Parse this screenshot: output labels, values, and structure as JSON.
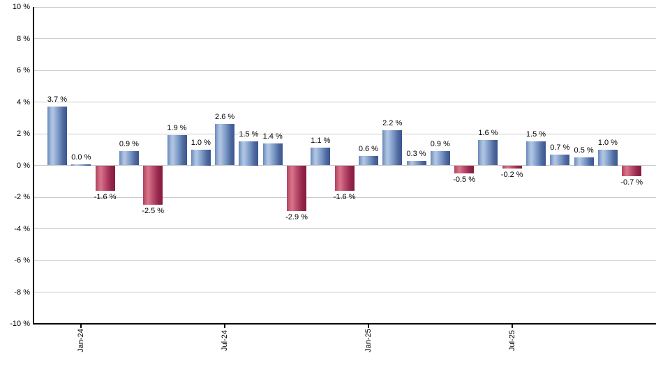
{
  "chart_data": {
    "type": "bar",
    "title": "",
    "xlabel": "",
    "ylabel": "",
    "ylim": [
      -10,
      10
    ],
    "grid": true,
    "legend": false,
    "y_ticks": [
      {
        "value": 10,
        "label": "10 %"
      },
      {
        "value": 8,
        "label": "8 %"
      },
      {
        "value": 6,
        "label": "6 %"
      },
      {
        "value": 4,
        "label": "4 %"
      },
      {
        "value": 2,
        "label": "2 %"
      },
      {
        "value": 0,
        "label": "0 %"
      },
      {
        "value": -2,
        "label": "-2 %"
      },
      {
        "value": -4,
        "label": "-4 %"
      },
      {
        "value": -6,
        "label": "-6 %"
      },
      {
        "value": -8,
        "label": "-8 %"
      },
      {
        "value": -10,
        "label": "-10 %"
      }
    ],
    "values": [
      3.7,
      0.0,
      -1.6,
      0.9,
      -2.5,
      1.9,
      1.0,
      2.6,
      1.5,
      1.4,
      -2.9,
      1.1,
      -1.6,
      0.6,
      2.2,
      0.3,
      0.9,
      -0.5,
      1.6,
      -0.2,
      1.5,
      0.7,
      0.5,
      1.0,
      -0.7
    ],
    "bar_labels": [
      "3.7 %",
      "0.0 %",
      "-1.6 %",
      "0.9 %",
      "-2.5 %",
      "1.9 %",
      "1.0 %",
      "2.6 %",
      "1.5 %",
      "1.4 %",
      "-2.9 %",
      "1.1 %",
      "-1.6 %",
      "0.6 %",
      "2.2 %",
      "0.3 %",
      "0.9 %",
      "-0.5 %",
      "1.6 %",
      "-0.2 %",
      "1.5 %",
      "0.7 %",
      "0.5 %",
      "1.0 %",
      "-0.7 %"
    ],
    "x_ticks": [
      {
        "bar_index": 1,
        "label": "Jan-24"
      },
      {
        "bar_index": 7,
        "label": "Jul-24"
      },
      {
        "bar_index": 13,
        "label": "Jan-25"
      },
      {
        "bar_index": 19,
        "label": "Jul-25"
      }
    ],
    "colors": {
      "positive_bar": "#7b97c4",
      "positive_bar_light": "#b3c7e4",
      "positive_bar_dark": "#3a5590",
      "negative_bar": "#c65a76",
      "negative_bar_light": "#d5768c",
      "negative_bar_dark": "#871c3e",
      "gridline": "#c9c9c9",
      "axis": "#000000",
      "label_text": "#000000"
    }
  }
}
